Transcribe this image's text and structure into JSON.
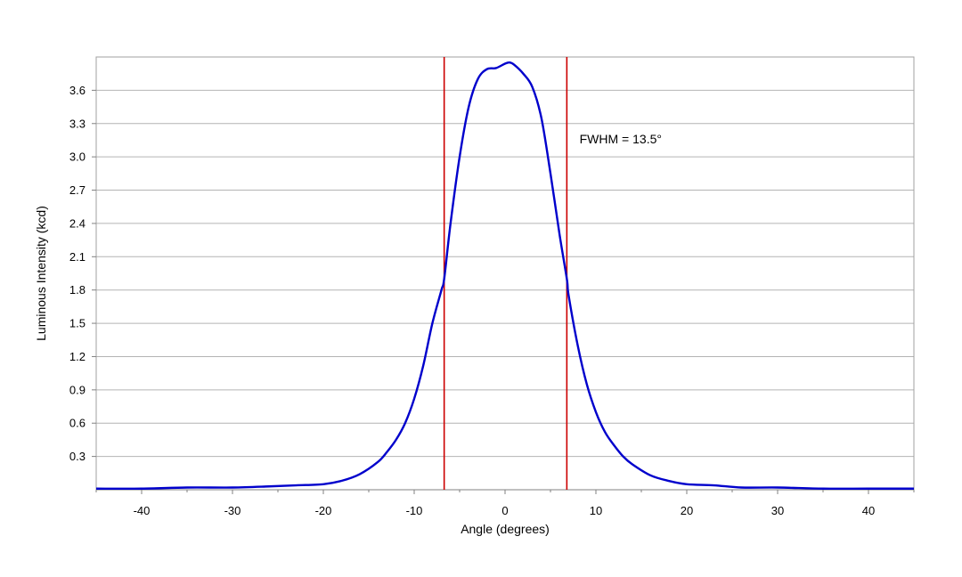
{
  "chart_data": {
    "type": "line",
    "xlabel": "Angle (degrees)",
    "ylabel": "Luminous Intensity (kcd)",
    "xlim": [
      -45,
      45
    ],
    "ylim": [
      0,
      3.9
    ],
    "x_ticks": [
      -40,
      -30,
      -20,
      -10,
      0,
      10,
      20,
      30,
      40
    ],
    "y_ticks": [
      0.3,
      0.6,
      0.9,
      1.2,
      1.5,
      1.8,
      2.1,
      2.4,
      2.7,
      3.0,
      3.3,
      3.6
    ],
    "y_tick_labels": [
      "0.3",
      "0.6",
      "0.9",
      "1.2",
      "1.5",
      "1.8",
      "2.1",
      "2.4",
      "2.7",
      "3.0",
      "3.3",
      "3.6"
    ],
    "grid": "horizontal",
    "series": [
      {
        "color": "#0000cc",
        "x": [
          -45,
          -40,
          -35,
          -30,
          -26,
          -23,
          -20,
          -18,
          -16,
          -14,
          -13,
          -12,
          -11,
          -10,
          -9,
          -8,
          -7,
          -6.7,
          -6,
          -5,
          -4,
          -3,
          -2,
          -1,
          0,
          0.5,
          1,
          2,
          3,
          4,
          5,
          6,
          6.8,
          7,
          8,
          9,
          10,
          11,
          12,
          13,
          14,
          16,
          18,
          20,
          23,
          26,
          30,
          35,
          40,
          45
        ],
        "y": [
          0.01,
          0.01,
          0.02,
          0.02,
          0.03,
          0.04,
          0.05,
          0.08,
          0.14,
          0.25,
          0.34,
          0.45,
          0.6,
          0.82,
          1.12,
          1.5,
          1.8,
          1.9,
          2.4,
          3.0,
          3.45,
          3.7,
          3.79,
          3.8,
          3.84,
          3.85,
          3.83,
          3.75,
          3.63,
          3.35,
          2.85,
          2.3,
          1.9,
          1.75,
          1.3,
          0.95,
          0.7,
          0.52,
          0.4,
          0.3,
          0.23,
          0.13,
          0.08,
          0.05,
          0.04,
          0.02,
          0.02,
          0.01,
          0.01,
          0.01
        ]
      }
    ],
    "reference_lines": [
      {
        "x": -6.7,
        "color": "#cc0000"
      },
      {
        "x": 6.8,
        "color": "#cc0000"
      }
    ],
    "annotations": [
      {
        "text": "FWHM = 13.5°",
        "x": 8.2,
        "y": 3.12
      }
    ]
  }
}
